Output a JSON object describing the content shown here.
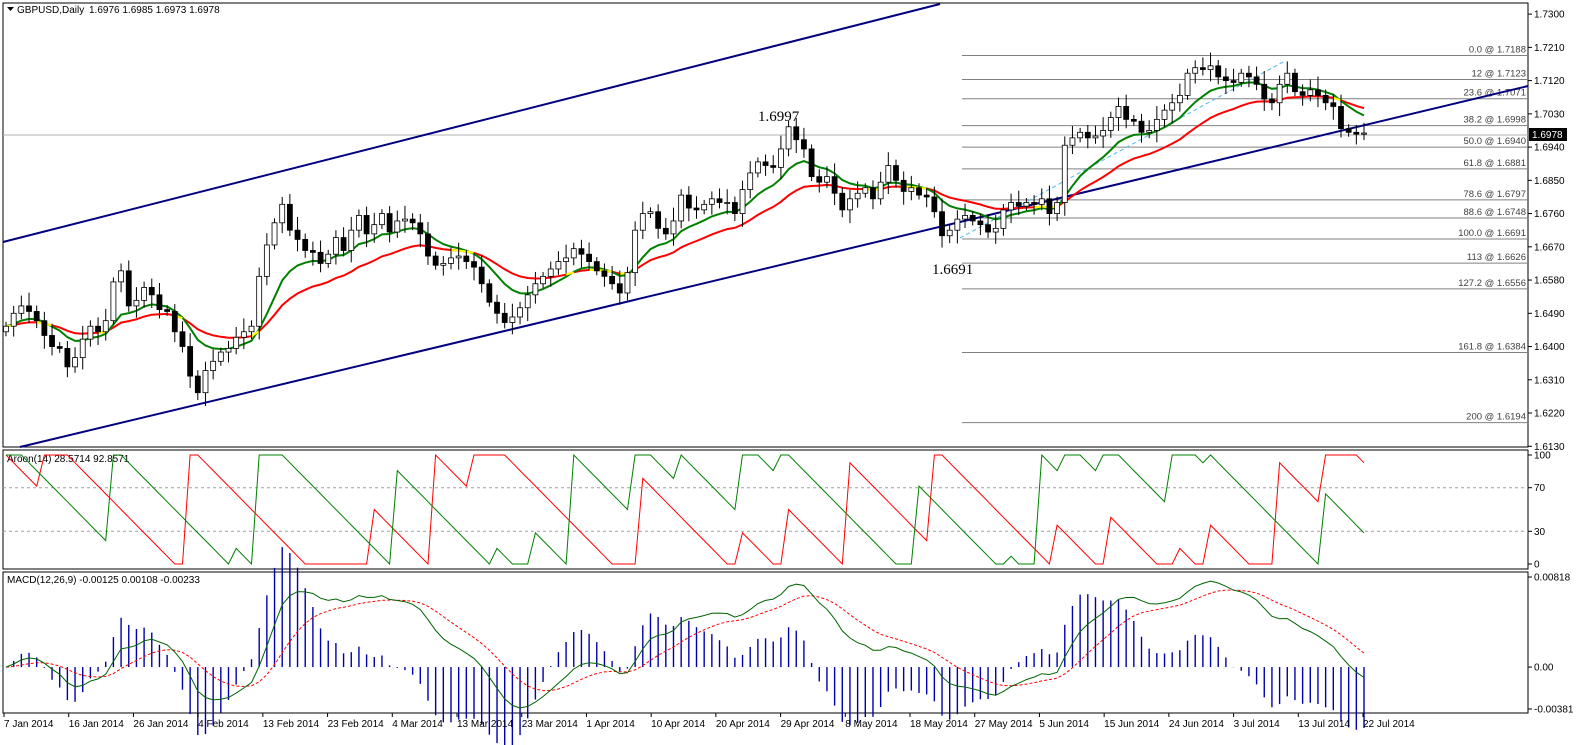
{
  "header": {
    "symbol": "GBPUSD,Daily",
    "ohlc": "1.6976 1.6985 1.6973 1.6978",
    "aroon_label": "Aroon(14) 28.5714 92.8571",
    "macd_label": "MACD(12,26,9) -0.00125 0.00108 -0.00233"
  },
  "colors": {
    "background": "#ffffff",
    "bull_candle": "#ffffff",
    "bear_candle": "#000000",
    "channel": "#000080",
    "ma_fast": "#008000",
    "ma_slow": "#ff0000",
    "ma_highlight": "#ffff00",
    "aroon_up": "#008000",
    "aroon_down": "#ff0000",
    "macd_hist": "#0000aa",
    "macd_signal": "#ff0000",
    "macd_line": "#006400",
    "fib": "#808080"
  },
  "chart_data": [
    {
      "type": "candlestick",
      "title": "GBPUSD,Daily",
      "current_price": "1.6978",
      "y_ticks": [
        "1.7300",
        "1.7210",
        "1.7120",
        "1.7030",
        "1.6940",
        "1.6850",
        "1.6760",
        "1.6670",
        "1.6580",
        "1.6490",
        "1.6400",
        "1.6310",
        "1.6220",
        "1.6130"
      ],
      "ylim": [
        1.612,
        1.732
      ],
      "x_labels": [
        "7 Jan 2014",
        "16 Jan 2014",
        "26 Jan 2014",
        "4 Feb 2014",
        "13 Feb 2014",
        "23 Feb 2014",
        "4 Mar 2014",
        "13 Mar 2014",
        "23 Mar 2014",
        "1 Apr 2014",
        "10 Apr 2014",
        "20 Apr 2014",
        "29 Apr 2014",
        "8 May 2014",
        "18 May 2014",
        "27 May 2014",
        "5 Jun 2014",
        "15 Jun 2014",
        "24 Jun 2014",
        "3 Jul 2014",
        "13 Jul 2014",
        "22 Jul 2014"
      ],
      "annotations": [
        {
          "text": "1.6997",
          "price": 1.6997
        },
        {
          "text": "1.6691",
          "price": 1.6691
        }
      ],
      "fibonacci": [
        {
          "label": "0.0 @ 1.7188",
          "price": 1.7188
        },
        {
          "label": "12 @ 1.7123",
          "price": 1.7123
        },
        {
          "label": "23.6 @ 1.7071",
          "price": 1.7071
        },
        {
          "label": "38.2 @ 1.6998",
          "price": 1.6998
        },
        {
          "label": "50.0 @ 1.6940",
          "price": 1.694
        },
        {
          "label": "61.8 @ 1.6881",
          "price": 1.6881
        },
        {
          "label": "78.6 @ 1.6797",
          "price": 1.6797
        },
        {
          "label": "88.6 @ 1.6748",
          "price": 1.6748
        },
        {
          "label": "100.0 @ 1.6691",
          "price": 1.6691
        },
        {
          "label": "113 @ 1.6626",
          "price": 1.6626
        },
        {
          "label": "127.2 @ 1.6556",
          "price": 1.6556
        },
        {
          "label": "161.8 @ 1.6384",
          "price": 1.6384
        },
        {
          "label": "200 @ 1.6194",
          "price": 1.6194
        }
      ],
      "close": [
        1.6455,
        1.649,
        1.651,
        1.6495,
        1.647,
        1.643,
        1.64,
        1.6395,
        1.6345,
        1.637,
        1.642,
        1.6455,
        1.644,
        1.647,
        1.6575,
        1.6605,
        1.651,
        1.6525,
        1.656,
        1.654,
        1.65,
        1.6495,
        1.644,
        1.64,
        1.632,
        1.6275,
        1.6335,
        1.636,
        1.6385,
        1.6395,
        1.6425,
        1.644,
        1.6455,
        1.659,
        1.6675,
        1.6735,
        1.6785,
        1.6715,
        1.669,
        1.666,
        1.6655,
        1.6625,
        1.665,
        1.6695,
        1.666,
        1.6715,
        1.6755,
        1.6705,
        1.673,
        1.676,
        1.671,
        1.674,
        1.6745,
        1.6735,
        1.6705,
        1.6645,
        1.662,
        1.6625,
        1.664,
        1.6645,
        1.663,
        1.6615,
        1.657,
        1.652,
        1.649,
        1.6465,
        1.648,
        1.6505,
        1.654,
        1.657,
        1.659,
        1.661,
        1.663,
        1.664,
        1.6665,
        1.665,
        1.663,
        1.6605,
        1.659,
        1.657,
        1.6545,
        1.66,
        1.6715,
        1.676,
        1.6765,
        1.672,
        1.6705,
        1.674,
        1.681,
        1.6775,
        1.677,
        1.6785,
        1.68,
        1.679,
        1.679,
        1.676,
        1.6825,
        1.687,
        1.69,
        1.689,
        1.6885,
        1.6935,
        1.6995,
        1.696,
        1.6935,
        1.686,
        1.6845,
        1.686,
        1.6815,
        1.677,
        1.68,
        1.6815,
        1.683,
        1.68,
        1.6845,
        1.689,
        1.685,
        1.682,
        1.683,
        1.681,
        1.6805,
        1.6765,
        1.67,
        1.6715,
        1.6745,
        1.6755,
        1.674,
        1.673,
        1.671,
        1.672,
        1.677,
        1.679,
        1.678,
        1.679,
        1.6785,
        1.68,
        1.676,
        1.679,
        1.6945,
        1.6965,
        1.698,
        1.6965,
        1.697,
        1.6985,
        1.702,
        1.705,
        1.7015,
        1.701,
        1.698,
        1.6985,
        1.7015,
        1.704,
        1.706,
        1.708,
        1.714,
        1.7155,
        1.715,
        1.716,
        1.713,
        1.712,
        1.7115,
        1.714,
        1.713,
        1.711,
        1.707,
        1.706,
        1.711,
        1.714,
        1.709,
        1.708,
        1.7095,
        1.708,
        1.706,
        1.705,
        1.699,
        1.698,
        1.6975,
        1.6978
      ],
      "series": [
        {
          "name": "Aroon Up",
          "y_ticks": [
            100,
            70,
            30,
            0
          ]
        },
        {
          "name": "MACD",
          "y_ticks": [
            "0.00818",
            "0.00",
            "-0.00381"
          ]
        }
      ]
    }
  ]
}
